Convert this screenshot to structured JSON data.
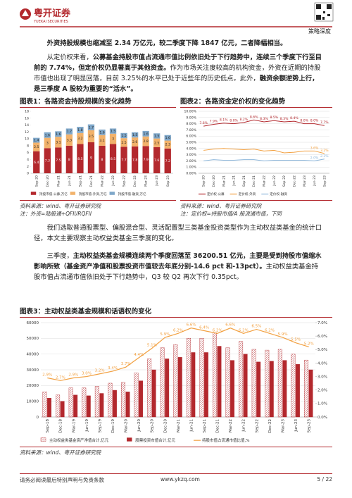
{
  "header": {
    "brand": "粤开证券",
    "brand_en": "YUEKAI SECURITIES",
    "section": "策略深度"
  },
  "paragraphs": [
    [
      {
        "text": "外资持股规模也缩减至 2.34 万亿元，较二季度下降 1847 亿元，二者降幅相当。",
        "bold": true
      }
    ],
    [
      {
        "text": "从定价权来看，",
        "bold": false
      },
      {
        "text": "公募基金持股市值占流通市值比例依旧处于下行趋势中，连续三个季度下行至目前的 7.74%，但定价权仍显著高于其他资金。",
        "bold": true
      },
      {
        "text": "作为市场关注度较高的机构资金，外资在近期的持股市值也出现了明显回落，目前 3.25%的水平已处于近些年的历史低点。此外，",
        "bold": false
      },
      {
        "text": "融资余额逆势上行，是三季度 A 股较为重要的“活水”。",
        "bold": true
      }
    ],
    [
      {
        "text": "我们选取普通股票型、偏股混合型、灵活配置型三类基金投资类型作为主动权益类基金的统计口径，本文主要观察主动权益类基金三季度的变化。",
        "bold": false
      }
    ],
    [
      {
        "text": "三季度，",
        "bold": false
      },
      {
        "text": "主动权益类基金规模连续两个季度回落至 36200.51 亿元，主要是受到持股市值缩水影响所致（基金资产净值和股票投资市值较去年底分别-14.6 pct 和-13pct）。",
        "bold": true
      },
      {
        "text": "主动权益类基金持股市值占流通市值依旧处于下行趋势中，Q3 较 Q2 再次下行 0.35pct。",
        "bold": false
      }
    ]
  ],
  "figures": [
    {
      "title": "图表1：各路资金持股规模的变化趋势",
      "source": "资料来源：wind、粤开证券研究院",
      "note": "注：外资=陆股通+QFII/RQFII",
      "chart_data": {
        "type": "stacked_bar",
        "grid": false,
        "data_labels": true,
        "categories": [
          "Sep-20",
          "Dec-20",
          "Mar-21",
          "Jun-21",
          "Sep-21",
          "Dec-21",
          "Mar-22",
          "Jun-22",
          "Sep-22",
          "Dec-22",
          "Mar-23",
          "Jun-23",
          "Sep-23"
        ],
        "ylim": [
          0,
          18
        ],
        "yticks": [
          0,
          2,
          4,
          6,
          8,
          10,
          12,
          14,
          16,
          18
        ],
        "series": [
          {
            "name": "持股市值-公募,万亿",
            "color": "#b3282d",
            "values": [
              6.4,
              7.3,
              7.5,
              8.0,
              8.5,
              9.0,
              8.0,
              8.5,
              7.7,
              7.8,
              7.9,
              7.6,
              7.2
            ]
          },
          {
            "name": "持股市值-外资,万亿",
            "color": "#f2b26b",
            "values": [
              2.5,
              3.0,
              3.1,
              3.3,
              3.2,
              3.5,
              3.1,
              3.0,
              2.5,
              2.6,
              2.8,
              2.5,
              2.3
            ]
          },
          {
            "name": "持股市值-融资,万亿",
            "color": "#7fa7c9",
            "values": [
              1.4,
              1.6,
              1.6,
              1.7,
              1.8,
              1.7,
              1.6,
              1.5,
              1.5,
              1.5,
              1.6,
              1.5,
              1.6
            ]
          }
        ]
      }
    },
    {
      "title": "图表2：各路资金定价权的变化趋势",
      "source": "资料来源：wind、粤开证券研究院",
      "note": "注：定价权=持股市值/A 股流通市值，下同",
      "chart_data": {
        "type": "line",
        "grid": true,
        "categories": [
          "Sep-20",
          "Dec-20",
          "Mar-21",
          "Jun-21",
          "Sep-21",
          "Dec-21",
          "Mar-22",
          "Jun-22",
          "Sep-22",
          "Dec-22",
          "Mar-23",
          "Jun-23",
          "Sep-23"
        ],
        "ylim": [
          0,
          10
        ],
        "yticks": [
          {
            "value": 0,
            "label": "0.00%"
          },
          {
            "value": 1,
            "label": "1.00%"
          },
          {
            "value": 2,
            "label": "2.00%"
          },
          {
            "value": 3,
            "label": "3.00%"
          },
          {
            "value": 4,
            "label": "4.00%"
          },
          {
            "value": 5,
            "label": "5.00%"
          },
          {
            "value": 6,
            "label": "6.00%"
          },
          {
            "value": 7,
            "label": "7.00%"
          },
          {
            "value": 8,
            "label": "8.00%"
          },
          {
            "value": 9,
            "label": "9.00%"
          },
          {
            "value": 10,
            "label": "10.00%"
          }
        ],
        "series": [
          {
            "name": "定价权-公募",
            "color": "#b3282d",
            "values": [
              7.6,
              7.9,
              8.1,
              8.0,
              8.2,
              8.6,
              8.3,
              8.5,
              8.3,
              8.4,
              8.0,
              8.0,
              7.7
            ],
            "value_labels": [
              "7.6%",
              "7.9%",
              "8.1%",
              "8.0%",
              "8.2%",
              "8.6%",
              "8.3%",
              "8.5%",
              "8.3%",
              "8.4%",
              "8.0%",
              "8.0%",
              "7.7%"
            ]
          },
          {
            "name": "定价权-外资",
            "color": "#f2a040",
            "values": [
              3.7,
              3.9,
              4.0,
              3.9,
              3.8,
              3.9,
              3.6,
              3.7,
              3.3,
              3.4,
              3.6,
              3.6,
              3.2
            ],
            "value_labels": [
              null,
              null,
              null,
              null,
              null,
              null,
              null,
              null,
              null,
              null,
              null,
              "3.6%",
              "3.2%"
            ]
          },
          {
            "name": "定价权-融资",
            "color": "#8fb8dc",
            "values": [
              2.0,
              2.2,
              2.1,
              2.1,
              2.2,
              2.2,
              2.0,
              2.1,
              2.1,
              2.1,
              2.1,
              2.0,
              2.3
            ],
            "value_labels": [
              null,
              null,
              null,
              null,
              null,
              null,
              null,
              null,
              null,
              null,
              null,
              "2.0%",
              "2.3%"
            ]
          }
        ]
      }
    },
    {
      "title": "图表3：主动权益类基金规模和话语权的变化",
      "source": "资料来源：wind、粤开证券研究院",
      "chart_data": {
        "type": "bar_line",
        "grid": true,
        "categories": [
          "Sep-18",
          "Dec-18",
          "Mar-19",
          "Jun-19",
          "Sep-19",
          "Dec-19",
          "Mar-20",
          "Jun-20",
          "Sep-20",
          "Dec-20",
          "Mar-21",
          "Jun-21",
          "Sep-21",
          "Dec-21",
          "Mar-22",
          "Jun-22",
          "Sep-22",
          "Dec-22",
          "Mar-23",
          "Jun-23",
          "Sep-23"
        ],
        "ylim": [
          0,
          60000
        ],
        "yticks": [
          0,
          10000,
          20000,
          30000,
          40000,
          50000,
          60000
        ],
        "y2lim": [
          0,
          7
        ],
        "y2ticks": [
          {
            "value": 0,
            "label": "0.0%"
          },
          {
            "value": 1,
            "label": "1.0%"
          },
          {
            "value": 2,
            "label": "2.0%"
          },
          {
            "value": 3,
            "label": "3.0%"
          },
          {
            "value": 4,
            "label": "4.0%"
          },
          {
            "value": 5,
            "label": "5.0%"
          },
          {
            "value": 6,
            "label": "6.0%"
          },
          {
            "value": 7,
            "label": "7.0%"
          }
        ],
        "series": [
          {
            "name": "主动权益类基金资产净值合计,亿元",
            "color": "#b3282d",
            "pattern": "hatch",
            "values": [
              16000,
              14000,
              18500,
              18500,
              19500,
              21500,
              22000,
              28000,
              37000,
              44000,
              46000,
              50000,
              50000,
              53500,
              44000,
              48000,
              43000,
              42500,
              43000,
              40000,
              36200
            ]
          },
          {
            "name": "股票投资市值合计,亿元",
            "color": "#b3282d",
            "values": [
              12000,
              10000,
              14000,
              13500,
              15000,
              17000,
              16000,
              23000,
              30000,
              37000,
              38000,
              41000,
              41000,
              45000,
              36000,
              40000,
              35000,
              35500,
              36000,
              33500,
              30000
            ]
          },
          {
            "name": "持股市值占流通市值比值,%",
            "color": "#f2a040",
            "axis": "y2",
            "values": [
              2.9,
              2.7,
              2.9,
              3.0,
              3.2,
              3.4,
              3.7,
              4.4,
              5.1,
              5.9,
              6.2,
              6.6,
              6.4,
              6.2,
              6.6,
              6.2,
              6.5,
              6.2,
              5.9,
              5.5,
              5.2
            ],
            "value_labels": [
              "2.9%",
              "2.7%",
              "2.9%",
              "3.0%",
              "3.2%",
              "3.4%",
              "3.7%",
              "4.4%",
              "5.1%",
              "5.9%",
              "6.2%",
              "6.6%",
              "6.4%",
              "6.2%",
              "6.6%",
              "6.2%",
              "6.5%",
              "6.2%",
              "5.9%",
              "5.5%",
              "5.2%"
            ]
          }
        ]
      }
    }
  ],
  "footer": {
    "disclaimer": "请务必阅读最后特别声明与免责条款",
    "site": "www.ykzq.com",
    "page": "5 / 22"
  }
}
